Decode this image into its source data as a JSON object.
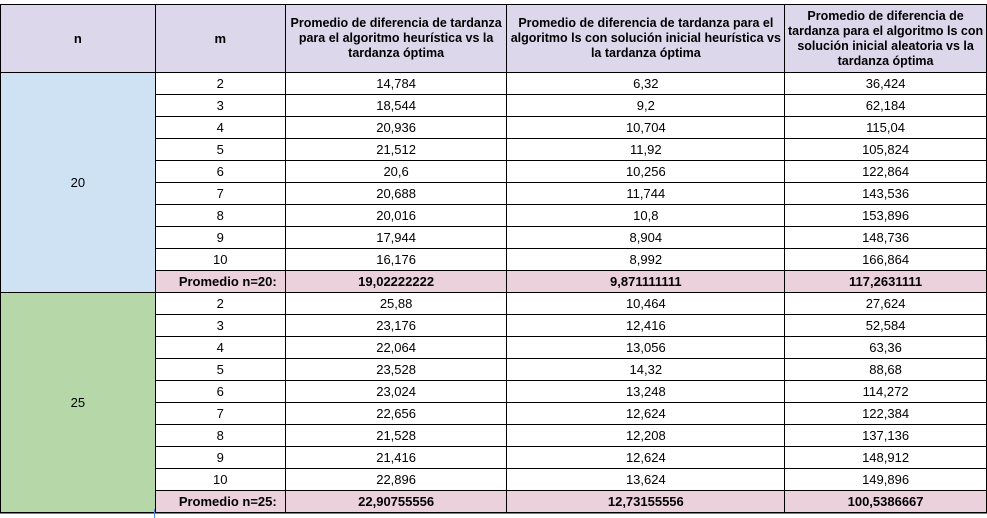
{
  "headers": {
    "n": "n",
    "m": "m",
    "col1": "Promedio de diferencia de tardanza para el algoritmo heurística vs la tardanza óptima",
    "col2": "Promedio de diferencia de tardanza para el algoritmo ls con solución inicial heurística vs la tardanza óptima",
    "col3": "Promedio de diferencia de tardanza para el algoritmo ls con solución inicial aleatoria vs la tardanza óptima"
  },
  "groups": [
    {
      "n": "20",
      "rows": [
        {
          "m": "2",
          "c1": "14,784",
          "c2": "6,32",
          "c3": "36,424"
        },
        {
          "m": "3",
          "c1": "18,544",
          "c2": "9,2",
          "c3": "62,184"
        },
        {
          "m": "4",
          "c1": "20,936",
          "c2": "10,704",
          "c3": "115,04"
        },
        {
          "m": "5",
          "c1": "21,512",
          "c2": "11,92",
          "c3": "105,824"
        },
        {
          "m": "6",
          "c1": "20,6",
          "c2": "10,256",
          "c3": "122,864"
        },
        {
          "m": "7",
          "c1": "20,688",
          "c2": "11,744",
          "c3": "143,536"
        },
        {
          "m": "8",
          "c1": "20,016",
          "c2": "10,8",
          "c3": "153,896"
        },
        {
          "m": "9",
          "c1": "17,944",
          "c2": "8,904",
          "c3": "148,736"
        },
        {
          "m": "10",
          "c1": "16,176",
          "c2": "8,992",
          "c3": "166,864"
        }
      ],
      "avg": {
        "label": "Promedio n=20:",
        "c1": "19,02222222",
        "c2": "9,871111111",
        "c3": "117,2631111"
      }
    },
    {
      "n": "25",
      "rows": [
        {
          "m": "2",
          "c1": "25,88",
          "c2": "10,464",
          "c3": "27,624"
        },
        {
          "m": "3",
          "c1": "23,176",
          "c2": "12,416",
          "c3": "52,584"
        },
        {
          "m": "4",
          "c1": "22,064",
          "c2": "13,056",
          "c3": "63,36"
        },
        {
          "m": "5",
          "c1": "23,528",
          "c2": "14,32",
          "c3": "88,68"
        },
        {
          "m": "6",
          "c1": "23,024",
          "c2": "13,248",
          "c3": "114,272"
        },
        {
          "m": "7",
          "c1": "22,656",
          "c2": "12,624",
          "c3": "122,384"
        },
        {
          "m": "8",
          "c1": "21,528",
          "c2": "12,208",
          "c3": "137,136"
        },
        {
          "m": "9",
          "c1": "21,416",
          "c2": "12,624",
          "c3": "148,912"
        },
        {
          "m": "10",
          "c1": "22,896",
          "c2": "13,624",
          "c3": "149,896"
        }
      ],
      "avg": {
        "label": "Promedio n=25:",
        "c1": "22,90755556",
        "c2": "12,73155556",
        "c3": "100,5386667"
      }
    }
  ],
  "colors": {
    "header_bg": "#ddd7eb",
    "group_20_bg": "#cfe2f3",
    "group_25_bg": "#b6d7a8",
    "avg_row_bg": "#ead1dc"
  }
}
